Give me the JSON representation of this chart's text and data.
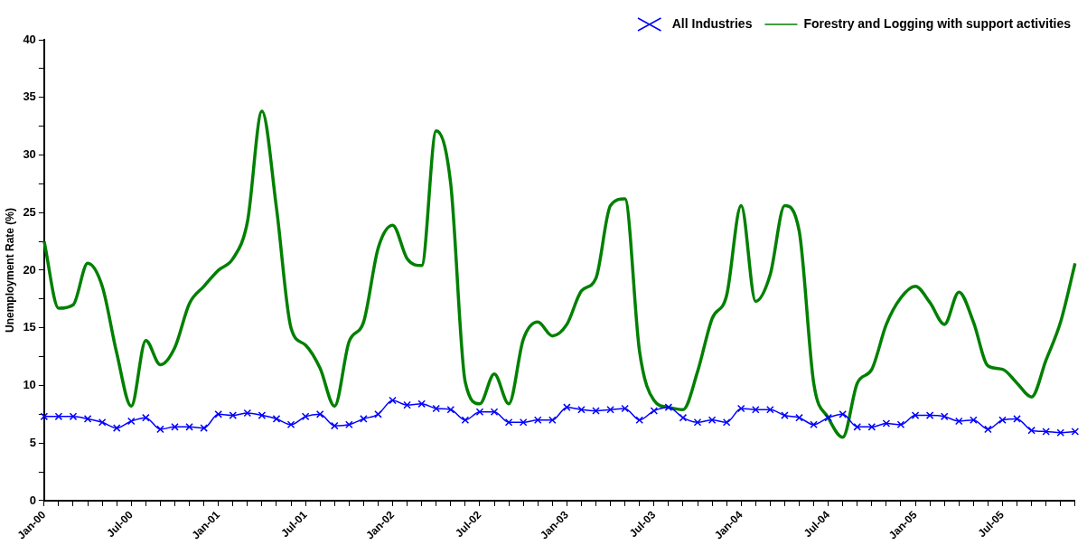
{
  "chart_data": {
    "type": "line",
    "ylabel": "Unemployment Rate (%)",
    "categories": [
      "Jan-00",
      null,
      null,
      null,
      null,
      null,
      "Jul-00",
      null,
      null,
      null,
      null,
      null,
      "Jan-01",
      null,
      null,
      null,
      null,
      null,
      "Jul-01",
      null,
      null,
      null,
      null,
      null,
      "Jan-02",
      null,
      null,
      null,
      null,
      null,
      "Jul-02",
      null,
      null,
      null,
      null,
      null,
      "Jan-03",
      null,
      null,
      null,
      null,
      null,
      "Jul-03",
      null,
      null,
      null,
      null,
      null,
      "Jan-04",
      null,
      null,
      null,
      null,
      null,
      "Jul-04",
      null,
      null,
      null,
      null,
      null,
      "Jan-05",
      null,
      null,
      null,
      null,
      null,
      "Jul-05",
      null,
      null,
      null,
      null,
      null
    ],
    "series": [
      {
        "name": "All Industries",
        "color": "#0000ff",
        "marker": "cross",
        "values": [
          7.3,
          7.3,
          7.3,
          7.1,
          6.8,
          6.3,
          6.9,
          7.2,
          6.2,
          6.4,
          6.4,
          6.3,
          7.5,
          7.4,
          7.6,
          7.4,
          7.1,
          6.6,
          7.3,
          7.5,
          6.5,
          6.6,
          7.1,
          7.5,
          8.7,
          8.3,
          8.4,
          8.0,
          7.9,
          7.0,
          7.7,
          7.7,
          6.8,
          6.8,
          7.0,
          7.0,
          8.1,
          7.9,
          7.8,
          7.9,
          8.0,
          7.0,
          7.8,
          8.1,
          7.2,
          6.8,
          7.0,
          6.8,
          8.0,
          7.9,
          7.9,
          7.4,
          7.2,
          6.6,
          7.2,
          7.5,
          6.4,
          6.4,
          6.7,
          6.6,
          7.4,
          7.4,
          7.3,
          6.9,
          7.0,
          6.2,
          7.0,
          7.1,
          6.1,
          6.0,
          5.9,
          6.0
        ]
      },
      {
        "name": "Forestry and Logging with support activities",
        "color": "#008000",
        "marker": "none",
        "values": [
          22.5,
          16.7,
          17.0,
          20.6,
          18.6,
          12.8,
          8.2,
          13.9,
          11.8,
          13.3,
          17.1,
          18.6,
          20.0,
          21.0,
          24.2,
          33.8,
          25.4,
          15.0,
          13.5,
          11.5,
          8.2,
          13.8,
          15.5,
          21.9,
          23.9,
          21.0,
          20.4,
          32.1,
          27.5,
          10.3,
          8.4,
          11.0,
          8.4,
          14.0,
          15.5,
          14.3,
          15.3,
          18.2,
          19.3,
          25.6,
          26.2,
          13.0,
          8.7,
          8.1,
          7.9,
          11.2,
          15.8,
          17.8,
          25.6,
          17.3,
          19.6,
          25.6,
          23.4,
          10.2,
          7.2,
          5.5,
          10.2,
          11.4,
          15.3,
          17.6,
          18.6,
          17.2,
          15.3,
          18.1,
          15.5,
          11.7,
          11.4,
          10.2,
          9.0,
          12.2,
          15.5,
          20.6
        ]
      }
    ],
    "ylim": [
      0,
      40
    ],
    "yticks": [
      0,
      {
        "value": 2.5,
        "label": null
      },
      5,
      {
        "value": 7.5,
        "label": null
      },
      10,
      {
        "value": 12.5,
        "label": null
      },
      15,
      {
        "value": 17.5,
        "label": null
      },
      20,
      {
        "value": 22.5,
        "label": null
      },
      25,
      {
        "value": 27.5,
        "label": null
      },
      30,
      {
        "value": 32.5,
        "label": null
      },
      35,
      {
        "value": 37.5,
        "label": null
      },
      40
    ],
    "legend": "top right",
    "grid": false
  }
}
